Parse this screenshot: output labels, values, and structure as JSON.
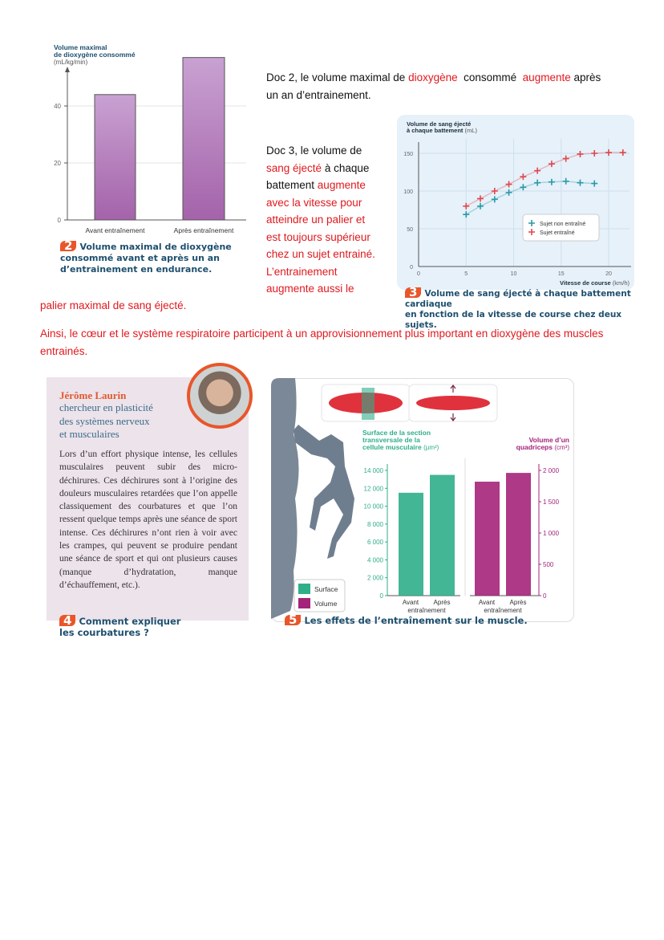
{
  "doc2_text": {
    "p1": "Doc 2, le volume maximal de ",
    "w1": "dioxygène",
    "p2": "  consommé  ",
    "w2": "augmente",
    "p3": " après",
    "line2": "un an d’entrainement."
  },
  "doc3_text": {
    "lines": [
      [
        {
          "t": "Doc 3, le volume de",
          "red": false
        }
      ],
      [
        {
          "t": "sang éjecté",
          "red": true
        },
        {
          "t": " à chaque",
          "red": false
        }
      ],
      [
        {
          "t": "battement ",
          "red": false
        },
        {
          "t": "augmente",
          "red": true
        }
      ],
      [
        {
          "t": "avec la vitesse pour",
          "red": true
        }
      ],
      [
        {
          "t": "atteindre un palier et",
          "red": true
        }
      ],
      [
        {
          "t": "est toujours supérieur",
          "red": true
        }
      ],
      [
        {
          "t": "chez un sujet entrainé.",
          "red": true
        }
      ],
      [
        {
          "t": "L’entrainement",
          "red": true
        }
      ],
      [
        {
          "t": "augmente aussi le",
          "red": true
        }
      ]
    ],
    "tail": "palier maximal de sang éjecté."
  },
  "conclusion": "Ainsi, le cœur et le système respiratoire participent à un approvisionnement plus important en dioxygène des muscles entrainés.",
  "chart_data": [
    {
      "type": "bar",
      "title": "",
      "ylabel": "Volume maximal de dioxygène consommé",
      "ylabel_line1": "Volume maximal",
      "ylabel_line2": "de dioxygène consommé",
      "yunit": "(mL/kg/min)",
      "categories": [
        "Avant entraînement",
        "Après entraînement"
      ],
      "values": [
        44,
        57
      ],
      "ylim": [
        0,
        60
      ],
      "yticks": [
        "0",
        "20",
        "40"
      ],
      "grid": true,
      "color": "#a86aae",
      "caption_num": "2",
      "caption": [
        "Volume maximal de dioxygène",
        "consommé avant et après un an",
        "d’entrainement en endurance."
      ]
    },
    {
      "type": "scatter",
      "ylabel_line1": "Volume de sang éjecté",
      "ylabel_line2": "à chaque battement",
      "yunit": "(mL)",
      "xlabel": "Vitesse de course",
      "xunit": "(km/h)",
      "xlim": [
        0,
        22
      ],
      "ylim": [
        0,
        160
      ],
      "xticks": [
        "0",
        "5",
        "10",
        "15",
        "20"
      ],
      "yticks": [
        "0",
        "50",
        "100",
        "150"
      ],
      "grid": true,
      "legend": "center-right",
      "series": [
        {
          "name": "Sujet non entraîné",
          "color": "#2a9aa6",
          "x": [
            5,
            6.5,
            8,
            9.5,
            11,
            12.5,
            14,
            15.5,
            17,
            18.5
          ],
          "y": [
            69,
            80,
            89,
            98,
            105,
            111,
            112,
            113,
            111,
            110
          ]
        },
        {
          "name": "Sujet entraîné",
          "color": "#e0474c",
          "x": [
            5,
            6.5,
            8,
            9.5,
            11,
            12.5,
            14,
            15.5,
            17,
            18.5,
            20,
            21.5
          ],
          "y": [
            80,
            90,
            100,
            109,
            119,
            127,
            136,
            143,
            149,
            150,
            151,
            151
          ]
        }
      ],
      "caption_num": "3",
      "caption": [
        "Volume de sang éjecté à chaque battement cardiaque",
        "en fonction de la vitesse de course chez deux sujets."
      ]
    },
    {
      "type": "bar",
      "ylabel_left": [
        "Surface de la section",
        "transversale de la",
        "cellule musculaire"
      ],
      "yunit_left": "(µm²)",
      "ylabel_right": [
        "Volume d’un",
        "quadriceps"
      ],
      "yunit_right": "(cm³)",
      "yticks_left": [
        "0",
        "2 000",
        "4 000",
        "6 000",
        "8 000",
        "10 000",
        "12 000",
        "14 000"
      ],
      "ylim_left": [
        0,
        14000
      ],
      "yticks_right": [
        "0",
        "500",
        "1 000",
        "1 500",
        "2 000"
      ],
      "ylim_right": [
        0,
        2000
      ],
      "categories": [
        "Avant",
        "Après"
      ],
      "group_label": "entraînement",
      "series": [
        {
          "name": "Surface",
          "color": "#2fae8a",
          "values": [
            11500,
            13500
          ]
        },
        {
          "name": "Volume",
          "color": "#a4237a",
          "values": [
            1820,
            1960
          ]
        }
      ],
      "legend": "bottom-left",
      "caption_num": "5",
      "caption": "Les effets de l’entraînement sur le muscle."
    }
  ],
  "doc4": {
    "name": "Jérôme Laurin",
    "role": [
      "chercheur en plasticité",
      "des systèmes nerveux",
      "et musculaires"
    ],
    "body": "Lors d’un effort physique intense, les cellules musculaires peuvent subir des micro-déchirures. Ces déchirures sont à l’origine des douleurs musculaires retardées que l’on appelle classiquement des courbatures et que l’on ressent quelque temps après une séance de sport intense. Ces déchirures n’ont rien à voir avec les crampes, qui peuvent se produire pendant une séance de sport et qui ont plusieurs causes (manque d’hydratation, manque d’échauffement, etc.).",
    "caption_num": "4",
    "caption": [
      "Comment expliquer",
      "les courbatures ?"
    ]
  },
  "colors": {
    "red": "#e0191e",
    "caption": "#1d4f6e",
    "badge": "#e8562a",
    "doc4_bg": "#ede3eb",
    "doc3_bg": "#e6f1fa"
  }
}
